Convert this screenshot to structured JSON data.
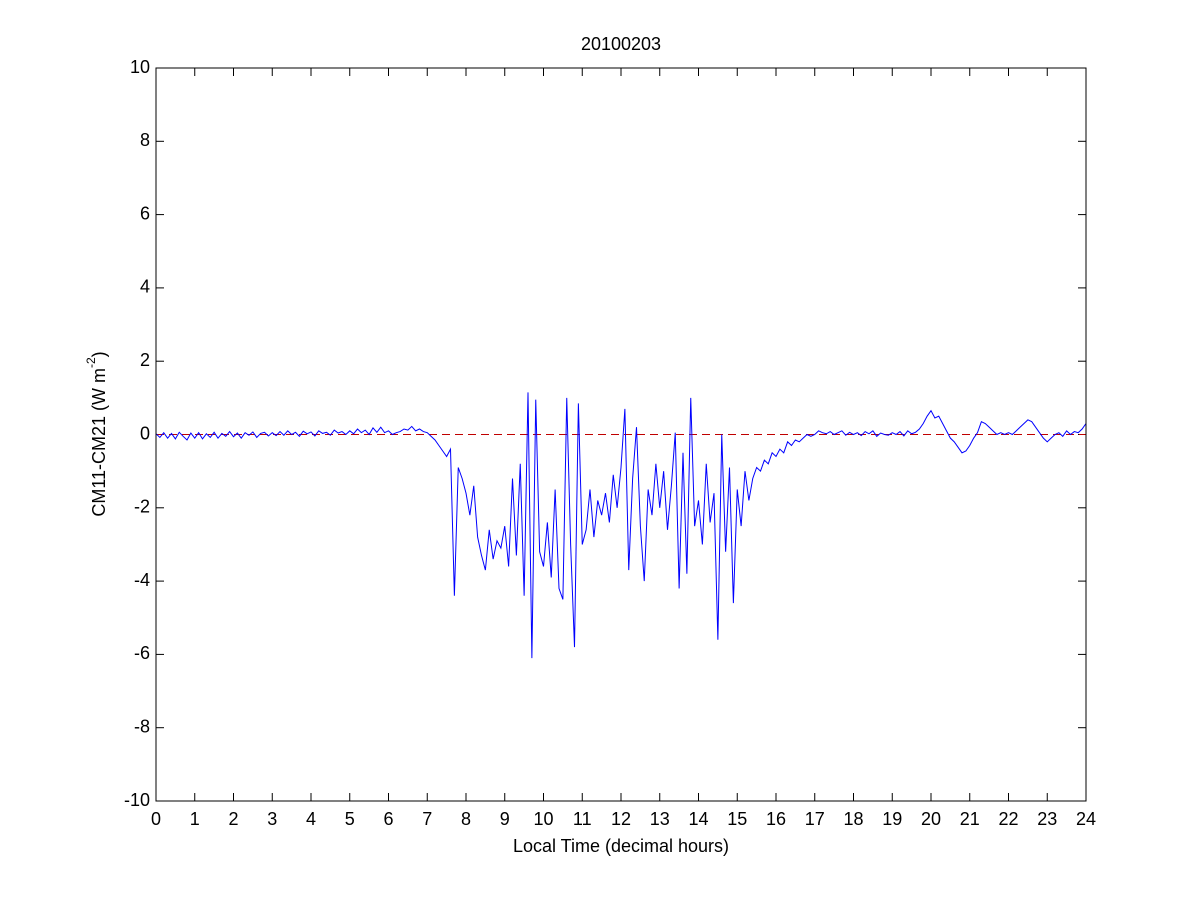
{
  "chart_data": {
    "type": "line",
    "title": "20100203",
    "xlabel": "Local Time (decimal hours)",
    "ylabel": {
      "text": "CM11-CM21 (W m",
      "superscript": "-2",
      "suffix": ")"
    },
    "x": [
      0,
      0.1,
      0.2,
      0.3,
      0.4,
      0.5,
      0.6,
      0.7,
      0.8,
      0.9,
      1,
      1.1,
      1.2,
      1.3,
      1.4,
      1.5,
      1.6,
      1.7,
      1.8,
      1.9,
      2,
      2.1,
      2.2,
      2.3,
      2.4,
      2.5,
      2.6,
      2.7,
      2.8,
      2.9,
      3,
      3.1,
      3.2,
      3.3,
      3.4,
      3.5,
      3.6,
      3.7,
      3.8,
      3.9,
      4,
      4.1,
      4.2,
      4.3,
      4.4,
      4.5,
      4.6,
      4.7,
      4.8,
      4.9,
      5,
      5.1,
      5.2,
      5.3,
      5.4,
      5.5,
      5.6,
      5.7,
      5.8,
      5.9,
      6,
      6.1,
      6.2,
      6.3,
      6.4,
      6.5,
      6.6,
      6.7,
      6.8,
      6.9,
      7,
      7.1,
      7.2,
      7.3,
      7.4,
      7.5,
      7.6,
      7.7,
      7.8,
      7.9,
      8,
      8.1,
      8.2,
      8.3,
      8.4,
      8.5,
      8.6,
      8.7,
      8.8,
      8.9,
      9,
      9.1,
      9.2,
      9.3,
      9.4,
      9.5,
      9.6,
      9.7,
      9.8,
      9.9,
      10,
      10.1,
      10.2,
      10.3,
      10.4,
      10.5,
      10.6,
      10.7,
      10.8,
      10.9,
      11,
      11.1,
      11.2,
      11.3,
      11.4,
      11.5,
      11.6,
      11.7,
      11.8,
      11.9,
      12,
      12.1,
      12.2,
      12.3,
      12.4,
      12.5,
      12.6,
      12.7,
      12.8,
      12.9,
      13,
      13.1,
      13.2,
      13.3,
      13.4,
      13.5,
      13.6,
      13.7,
      13.8,
      13.9,
      14,
      14.1,
      14.2,
      14.3,
      14.4,
      14.5,
      14.6,
      14.7,
      14.8,
      14.9,
      15,
      15.1,
      15.2,
      15.3,
      15.4,
      15.5,
      15.6,
      15.7,
      15.8,
      15.9,
      16,
      16.1,
      16.2,
      16.3,
      16.4,
      16.5,
      16.6,
      16.7,
      16.8,
      16.9,
      17,
      17.1,
      17.2,
      17.3,
      17.4,
      17.5,
      17.6,
      17.7,
      17.8,
      17.9,
      18,
      18.1,
      18.2,
      18.3,
      18.4,
      18.5,
      18.6,
      18.7,
      18.8,
      18.9,
      19,
      19.1,
      19.2,
      19.3,
      19.4,
      19.5,
      19.6,
      19.7,
      19.8,
      19.9,
      20,
      20.1,
      20.2,
      20.3,
      20.4,
      20.5,
      20.6,
      20.7,
      20.8,
      20.9,
      21,
      21.1,
      21.2,
      21.3,
      21.4,
      21.5,
      21.6,
      21.7,
      21.8,
      21.9,
      22,
      22.1,
      22.2,
      22.3,
      22.4,
      22.5,
      22.6,
      22.7,
      22.8,
      22.9,
      23,
      23.1,
      23.2,
      23.3,
      23.4,
      23.5,
      23.6,
      23.7,
      23.8,
      23.9,
      24
    ],
    "series": [
      {
        "color": "#0000ff",
        "values": [
          0.02,
          -0.08,
          0.05,
          -0.1,
          0.03,
          -0.12,
          0.06,
          -0.05,
          -0.15,
          0.04,
          -0.1,
          0.05,
          -0.12,
          0.02,
          -0.08,
          0.06,
          -0.1,
          0.03,
          -0.05,
          0.08,
          -0.06,
          0.04,
          -0.1,
          0.05,
          -0.02,
          0.07,
          -0.08,
          0.03,
          0.06,
          -0.04,
          0.05,
          -0.03,
          0.08,
          -0.02,
          0.1,
          0.0,
          0.06,
          -0.05,
          0.09,
          0.02,
          0.07,
          -0.04,
          0.1,
          0.03,
          0.06,
          -0.02,
          0.12,
          0.04,
          0.08,
          0.0,
          0.1,
          0.02,
          0.15,
          0.05,
          0.12,
          0.0,
          0.18,
          0.06,
          0.2,
          0.05,
          0.1,
          0.0,
          0.05,
          0.08,
          0.15,
          0.12,
          0.22,
          0.1,
          0.15,
          0.08,
          0.05,
          -0.05,
          -0.15,
          -0.3,
          -0.45,
          -0.6,
          -0.4,
          -4.4,
          -0.9,
          -1.2,
          -1.6,
          -2.2,
          -1.4,
          -2.8,
          -3.3,
          -3.7,
          -2.6,
          -3.4,
          -2.9,
          -3.1,
          -2.5,
          -3.6,
          -1.2,
          -3.3,
          -0.8,
          -4.4,
          1.15,
          -6.1,
          0.95,
          -3.2,
          -3.6,
          -2.4,
          -3.9,
          -1.5,
          -4.2,
          -4.5,
          1.0,
          -3.0,
          -5.8,
          0.85,
          -3.0,
          -2.6,
          -1.5,
          -2.8,
          -1.8,
          -2.2,
          -1.6,
          -2.4,
          -1.1,
          -2.0,
          -0.9,
          0.7,
          -3.7,
          -1.2,
          0.2,
          -2.5,
          -4.0,
          -1.5,
          -2.2,
          -0.8,
          -2.0,
          -1.0,
          -2.6,
          -1.4,
          0.05,
          -4.2,
          -0.5,
          -3.8,
          1.0,
          -2.5,
          -1.8,
          -3.0,
          -0.8,
          -2.4,
          -1.6,
          -5.6,
          0.0,
          -3.2,
          -0.9,
          -4.6,
          -1.5,
          -2.5,
          -1.0,
          -1.8,
          -1.2,
          -0.9,
          -1.0,
          -0.7,
          -0.8,
          -0.5,
          -0.6,
          -0.4,
          -0.5,
          -0.2,
          -0.3,
          -0.15,
          -0.2,
          -0.1,
          0.0,
          -0.05,
          0.0,
          0.1,
          0.05,
          0.02,
          0.08,
          0.0,
          0.05,
          0.1,
          -0.02,
          0.06,
          0.0,
          0.05,
          -0.03,
          0.08,
          0.02,
          0.1,
          -0.05,
          0.04,
          0.0,
          -0.02,
          0.05,
          0.0,
          0.08,
          -0.04,
          0.1,
          0.02,
          0.06,
          0.15,
          0.3,
          0.5,
          0.65,
          0.45,
          0.5,
          0.3,
          0.1,
          -0.1,
          -0.2,
          -0.35,
          -0.5,
          -0.45,
          -0.3,
          -0.1,
          0.05,
          0.35,
          0.3,
          0.2,
          0.1,
          0.0,
          0.05,
          0.0,
          0.05,
          0.0,
          0.1,
          0.2,
          0.3,
          0.4,
          0.35,
          0.2,
          0.05,
          -0.1,
          -0.2,
          -0.1,
          0.0,
          0.05,
          -0.05,
          0.1,
          0.0,
          0.08,
          0.05,
          0.15,
          0.3
        ]
      }
    ],
    "reference_line": {
      "value": 0,
      "color": "#c00000",
      "style": "dashed"
    },
    "xlim": [
      0,
      24
    ],
    "xticks": [
      0,
      1,
      2,
      3,
      4,
      5,
      6,
      7,
      8,
      9,
      10,
      11,
      12,
      13,
      14,
      15,
      16,
      17,
      18,
      19,
      20,
      21,
      22,
      23,
      24
    ],
    "ylim": [
      -10,
      10
    ],
    "yticks": [
      -10,
      -8,
      -6,
      -4,
      -2,
      0,
      2,
      4,
      6,
      8,
      10
    ]
  }
}
